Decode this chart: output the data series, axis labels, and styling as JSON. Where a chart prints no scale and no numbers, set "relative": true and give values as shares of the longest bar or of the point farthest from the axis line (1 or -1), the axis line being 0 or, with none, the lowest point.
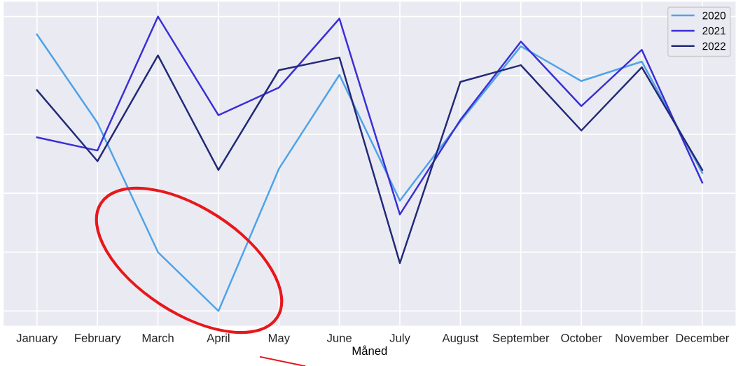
{
  "chart_data": {
    "type": "line",
    "relative": true,
    "xlabel": "Måned",
    "categories": [
      "January",
      "February",
      "March",
      "April",
      "May",
      "June",
      "July",
      "August",
      "September",
      "October",
      "November",
      "December"
    ],
    "series": [
      {
        "name": "2020",
        "color": "#4fa3e8",
        "values": [
          0.939,
          0.639,
          0.2,
          0,
          0.483,
          0.802,
          0.375,
          0.644,
          0.899,
          0.781,
          0.847,
          0.469
        ]
      },
      {
        "name": "2021",
        "color": "#3a2fd6",
        "values": [
          0.59,
          0.545,
          1,
          0.665,
          0.759,
          0.993,
          0.328,
          0.649,
          0.915,
          0.696,
          0.887,
          0.436
        ]
      },
      {
        "name": "2022",
        "color": "#232a78",
        "values": [
          0.75,
          0.509,
          0.868,
          0.479,
          0.818,
          0.861,
          0.163,
          0.778,
          0.835,
          0.613,
          0.828,
          0.479
        ]
      }
    ],
    "grid": true,
    "legend": "top right",
    "marker": "none",
    "line_style": "solid"
  }
}
